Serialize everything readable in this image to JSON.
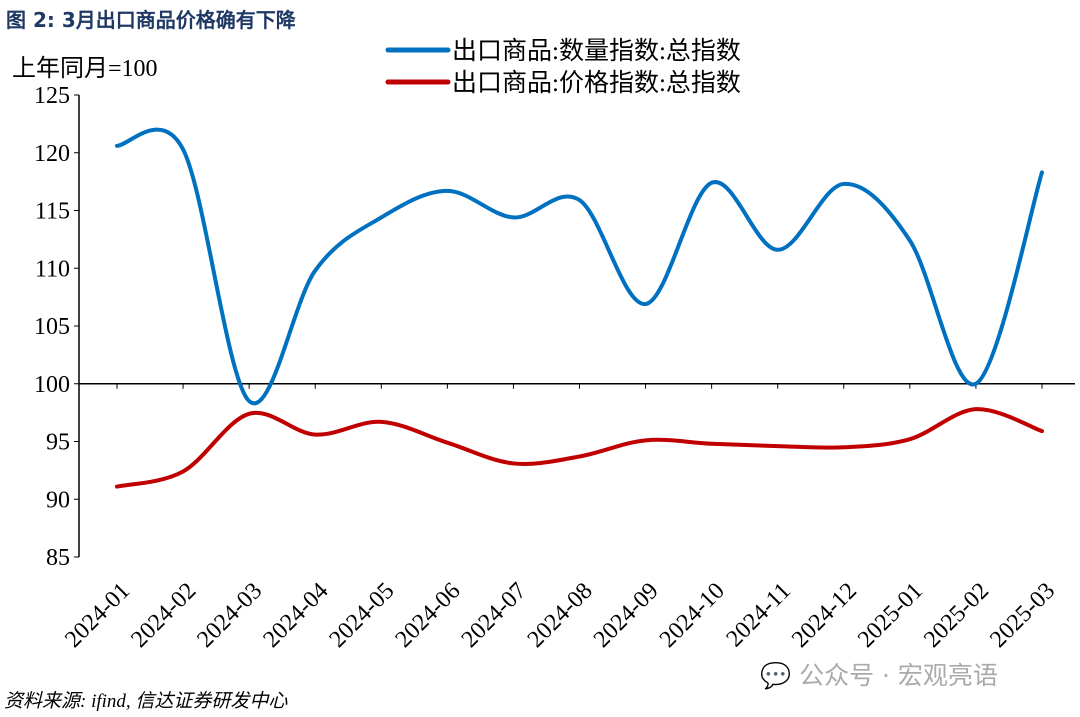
{
  "title": "图 2: 3月出口商品价格确有下降",
  "unit_label": "上年同月=100",
  "source": "资料来源: ifind, 信达证券研发中心",
  "watermark": "公众号 · 宏观亮语",
  "chart_data": {
    "type": "line",
    "categories": [
      "2024-01",
      "2024-02",
      "2024-03",
      "2024-04",
      "2024-05",
      "2024-06",
      "2024-07",
      "2024-08",
      "2024-09",
      "2024-10",
      "2024-11",
      "2024-12",
      "2025-01",
      "2025-02",
      "2025-03"
    ],
    "ylim": [
      85,
      125
    ],
    "yticks": [
      85,
      90,
      95,
      100,
      105,
      110,
      115,
      120,
      125
    ],
    "x_axis_crosses_at": 100,
    "grid": false,
    "legend": "top-right",
    "series": [
      {
        "name": "出口商品:数量指数:总指数",
        "color": "#0070c0",
        "values": [
          120.6,
          120.3,
          98.5,
          109.8,
          114.4,
          116.7,
          114.4,
          115.9,
          106.9,
          117.4,
          111.6,
          117.3,
          112.4,
          100.0,
          118.3
        ]
      },
      {
        "name": "出口商品:价格指数:总指数",
        "color": "#c00000",
        "values": [
          91.1,
          92.4,
          97.4,
          95.6,
          96.7,
          94.9,
          93.1,
          93.7,
          95.1,
          94.8,
          94.6,
          94.5,
          95.2,
          97.8,
          95.9
        ]
      }
    ]
  }
}
